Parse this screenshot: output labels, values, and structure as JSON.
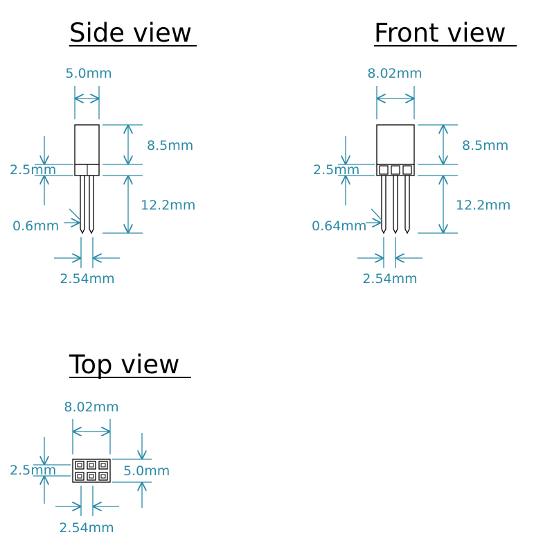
{
  "colors": {
    "dimension": "#2a8aa6",
    "outline": "#000000",
    "background": "#ffffff"
  },
  "side_view": {
    "title": "Side view",
    "width_label": "5.0mm",
    "body_height_label": "8.5mm",
    "base_height_label": "2.5mm",
    "pin_length_label": "12.2mm",
    "pin_width_label": "0.6mm",
    "pitch_label": "2.54mm"
  },
  "front_view": {
    "title": "Front view",
    "width_label": "8.02mm",
    "body_height_label": "8.5mm",
    "base_height_label": "2.5mm",
    "pin_length_label": "12.2mm",
    "pin_width_label": "0.64mm",
    "pitch_label": "2.54mm"
  },
  "top_view": {
    "title": "Top view",
    "width_label": "8.02mm",
    "row_pitch_label": "2.5mm",
    "depth_label": "5.0mm",
    "pitch_label": "2.54mm"
  }
}
